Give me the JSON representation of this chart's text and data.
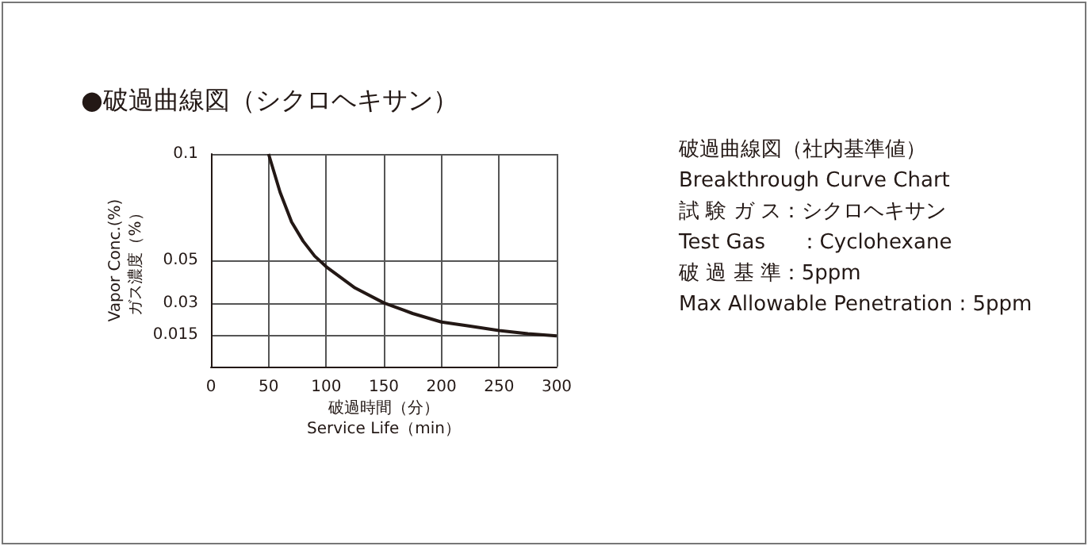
{
  "chart_data": {
    "type": "line",
    "title": "●破過曲線図（シクロヘキサン）",
    "xlabel": "破過時間（分）\nService Life（min）",
    "ylabel": "Vapor Conc.(%)\nガス濃度（%）",
    "annotations": [
      "破過曲線図（社内基準値）",
      "Breakthrough Curve Chart",
      "試 験 ガ ス：シクロヘキサン",
      "Test Gas　  ：Cyclohexane",
      "破 過 基 準：5ppm",
      "Max Allowable Penetration : 5ppm"
    ],
    "series": [
      {
        "color": "#231815",
        "x": [
          50,
          60,
          70,
          80,
          90,
          100,
          125,
          150,
          175,
          200,
          225,
          250,
          275,
          300
        ],
        "values": [
          0.1,
          0.082,
          0.068,
          0.059,
          0.052,
          0.047,
          0.037,
          0.03,
          0.025,
          0.021,
          0.019,
          0.017,
          0.0155,
          0.0145
        ]
      }
    ],
    "xlim": [
      0,
      300
    ],
    "xticks": [
      0,
      50,
      100,
      150,
      200,
      250,
      300
    ],
    "ylim": [
      0,
      0.1
    ],
    "yticks": [
      0.015,
      0.03,
      0.05,
      0.1
    ],
    "grid": true,
    "marker": "none",
    "line_style": "solid"
  }
}
